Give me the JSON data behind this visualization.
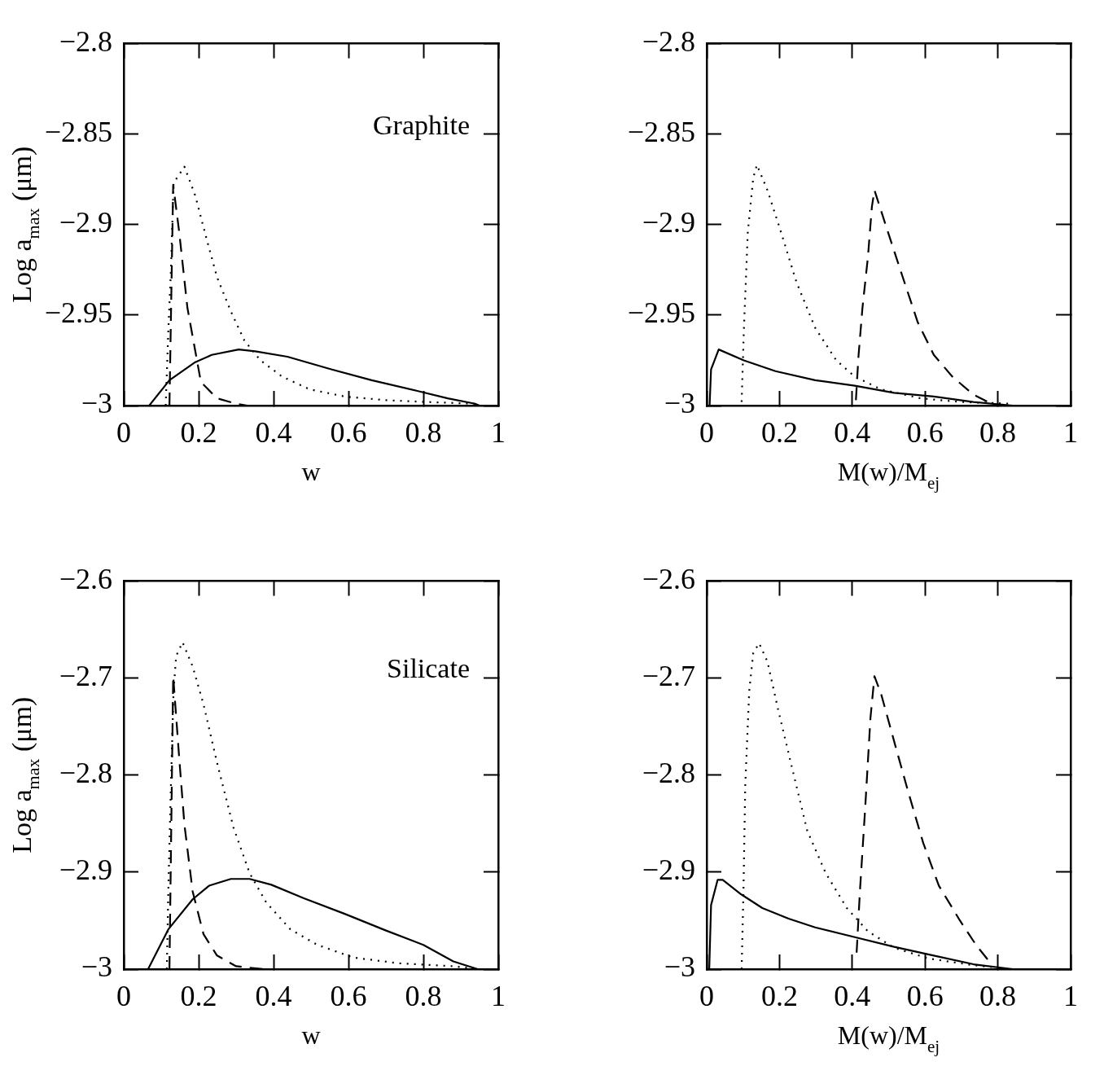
{
  "chart_data": [
    {
      "type": "line",
      "xlabel": "w",
      "ylabel": "Log a$_{max}$ (μm)",
      "annotations": [
        "Graphite"
      ],
      "legend": false,
      "marker": "none",
      "xlim": [
        0,
        1
      ],
      "ylim": [
        -3,
        -2.8
      ],
      "xticks": [
        0,
        0.2,
        0.4,
        0.6,
        0.8,
        1
      ],
      "yticks": [
        -3,
        -2.95,
        -2.9,
        -2.85,
        -2.8
      ],
      "series": [
        {
          "color": "#000000",
          "line_style": "solid",
          "x": [
            0.068,
            0.122,
            0.191,
            0.235,
            0.307,
            0.351,
            0.437,
            0.554,
            0.662,
            0.786,
            0.865,
            0.938,
            0.95
          ],
          "values": [
            -3,
            -2.986,
            -2.976,
            -2.972,
            -2.969,
            -2.97,
            -2.973,
            -2.98,
            -2.986,
            -2.992,
            -2.996,
            -2.999,
            -3
          ]
        },
        {
          "color": "#000000",
          "line_style": "dotted",
          "x": [
            0.112,
            0.119,
            0.126,
            0.133,
            0.162,
            0.191,
            0.22,
            0.249,
            0.286,
            0.322,
            0.365,
            0.423,
            0.496,
            0.59,
            0.699,
            0.807,
            0.937
          ],
          "values": [
            -3,
            -2.959,
            -2.925,
            -2.877,
            -2.868,
            -2.884,
            -2.907,
            -2.929,
            -2.948,
            -2.964,
            -2.975,
            -2.984,
            -2.991,
            -2.995,
            -2.997,
            -2.998,
            -2.999
          ]
        },
        {
          "color": "#000000",
          "line_style": "dashed",
          "x": [
            0.122,
            0.132,
            0.148,
            0.17,
            0.206,
            0.249,
            0.3,
            0.33
          ],
          "values": [
            -3,
            -2.878,
            -2.904,
            -2.946,
            -2.987,
            -2.996,
            -2.999,
            -3
          ]
        }
      ]
    },
    {
      "type": "line",
      "xlabel": "M(w)/M$_{ej}$",
      "legend": false,
      "marker": "none",
      "xlim": [
        0,
        1
      ],
      "ylim": [
        -3,
        -2.8
      ],
      "xticks": [
        0,
        0.2,
        0.4,
        0.6,
        0.8,
        1
      ],
      "yticks": [
        -3,
        -2.95,
        -2.9,
        -2.85,
        -2.8
      ],
      "series": [
        {
          "color": "#000000",
          "line_style": "solid",
          "x": [
            0.008,
            0.012,
            0.033,
            0.102,
            0.189,
            0.298,
            0.407,
            0.515,
            0.624,
            0.733,
            0.841,
            0.9
          ],
          "values": [
            -3,
            -2.98,
            -2.969,
            -2.975,
            -2.981,
            -2.986,
            -2.989,
            -2.993,
            -2.995,
            -2.998,
            -3,
            -3
          ]
        },
        {
          "color": "#000000",
          "line_style": "dotted",
          "x": [
            0.096,
            0.102,
            0.113,
            0.128,
            0.138,
            0.167,
            0.204,
            0.247,
            0.298,
            0.356,
            0.407,
            0.479,
            0.588,
            0.696,
            0.841
          ],
          "values": [
            -2.998,
            -2.959,
            -2.904,
            -2.874,
            -2.867,
            -2.881,
            -2.904,
            -2.932,
            -2.957,
            -2.975,
            -2.984,
            -2.991,
            -2.996,
            -2.998,
            -2.999
          ]
        },
        {
          "color": "#000000",
          "line_style": "dashed",
          "x": [
            0.41,
            0.417,
            0.428,
            0.443,
            0.454,
            0.461,
            0.493,
            0.537,
            0.58,
            0.624,
            0.675,
            0.733,
            0.783
          ],
          "values": [
            -2.997,
            -2.973,
            -2.946,
            -2.918,
            -2.89,
            -2.881,
            -2.901,
            -2.928,
            -2.954,
            -2.972,
            -2.984,
            -2.994,
            -2.999
          ]
        }
      ]
    },
    {
      "type": "line",
      "xlabel": "w",
      "ylabel": "Log a$_{max}$ (μm)",
      "annotations": [
        "Silicate"
      ],
      "legend": false,
      "marker": "none",
      "xlim": [
        0,
        1
      ],
      "ylim": [
        -3,
        -2.6
      ],
      "xticks": [
        0,
        0.2,
        0.4,
        0.6,
        0.8,
        1
      ],
      "yticks": [
        -3,
        -2.9,
        -2.8,
        -2.7,
        -2.6
      ],
      "series": [
        {
          "color": "#000000",
          "line_style": "solid",
          "x": [
            0.065,
            0.119,
            0.184,
            0.228,
            0.286,
            0.336,
            0.394,
            0.481,
            0.59,
            0.699,
            0.8,
            0.88,
            0.945
          ],
          "values": [
            -3,
            -2.959,
            -2.928,
            -2.914,
            -2.907,
            -2.907,
            -2.913,
            -2.927,
            -2.943,
            -2.96,
            -2.975,
            -2.992,
            -3
          ]
        },
        {
          "color": "#000000",
          "line_style": "dotted",
          "x": [
            0.115,
            0.119,
            0.126,
            0.133,
            0.14,
            0.157,
            0.184,
            0.213,
            0.249,
            0.293,
            0.336,
            0.38,
            0.445,
            0.517,
            0.612,
            0.735,
            0.88,
            0.945
          ],
          "values": [
            -3,
            -2.92,
            -2.81,
            -2.713,
            -2.677,
            -2.663,
            -2.688,
            -2.727,
            -2.787,
            -2.854,
            -2.901,
            -2.931,
            -2.959,
            -2.975,
            -2.988,
            -2.994,
            -2.997,
            -3
          ]
        },
        {
          "color": "#000000",
          "line_style": "dashed",
          "x": [
            0.122,
            0.132,
            0.148,
            0.162,
            0.184,
            0.213,
            0.249,
            0.3,
            0.372
          ],
          "values": [
            -3,
            -2.698,
            -2.782,
            -2.851,
            -2.92,
            -2.964,
            -2.986,
            -2.997,
            -3
          ]
        }
      ]
    },
    {
      "type": "line",
      "xlabel": "M(w)/M$_{ej}$",
      "legend": false,
      "marker": "none",
      "xlim": [
        0,
        1
      ],
      "ylim": [
        -3,
        -2.6
      ],
      "xticks": [
        0,
        0.2,
        0.4,
        0.6,
        0.8,
        1
      ],
      "yticks": [
        -3,
        -2.9,
        -2.8,
        -2.7,
        -2.6
      ],
      "series": [
        {
          "color": "#000000",
          "line_style": "solid",
          "x": [
            0.007,
            0.012,
            0.03,
            0.044,
            0.095,
            0.153,
            0.225,
            0.298,
            0.407,
            0.515,
            0.624,
            0.733,
            0.841,
            0.9
          ],
          "values": [
            -3,
            -2.934,
            -2.908,
            -2.908,
            -2.923,
            -2.937,
            -2.948,
            -2.957,
            -2.967,
            -2.977,
            -2.986,
            -2.995,
            -3,
            -3
          ]
        },
        {
          "color": "#000000",
          "line_style": "dotted",
          "x": [
            0.096,
            0.101,
            0.106,
            0.117,
            0.128,
            0.144,
            0.167,
            0.196,
            0.233,
            0.276,
            0.327,
            0.385,
            0.443,
            0.515,
            0.609,
            0.733,
            0.841
          ],
          "values": [
            -3,
            -2.92,
            -2.81,
            -2.713,
            -2.674,
            -2.664,
            -2.683,
            -2.732,
            -2.79,
            -2.857,
            -2.901,
            -2.937,
            -2.961,
            -2.978,
            -2.989,
            -2.996,
            -3
          ]
        },
        {
          "color": "#000000",
          "line_style": "dashed",
          "x": [
            0.412,
            0.421,
            0.435,
            0.45,
            0.461,
            0.479,
            0.515,
            0.552,
            0.595,
            0.638,
            0.696,
            0.74,
            0.772
          ],
          "values": [
            -2.983,
            -2.92,
            -2.837,
            -2.741,
            -2.698,
            -2.716,
            -2.765,
            -2.815,
            -2.87,
            -2.914,
            -2.95,
            -2.975,
            -2.99
          ]
        }
      ]
    }
  ]
}
